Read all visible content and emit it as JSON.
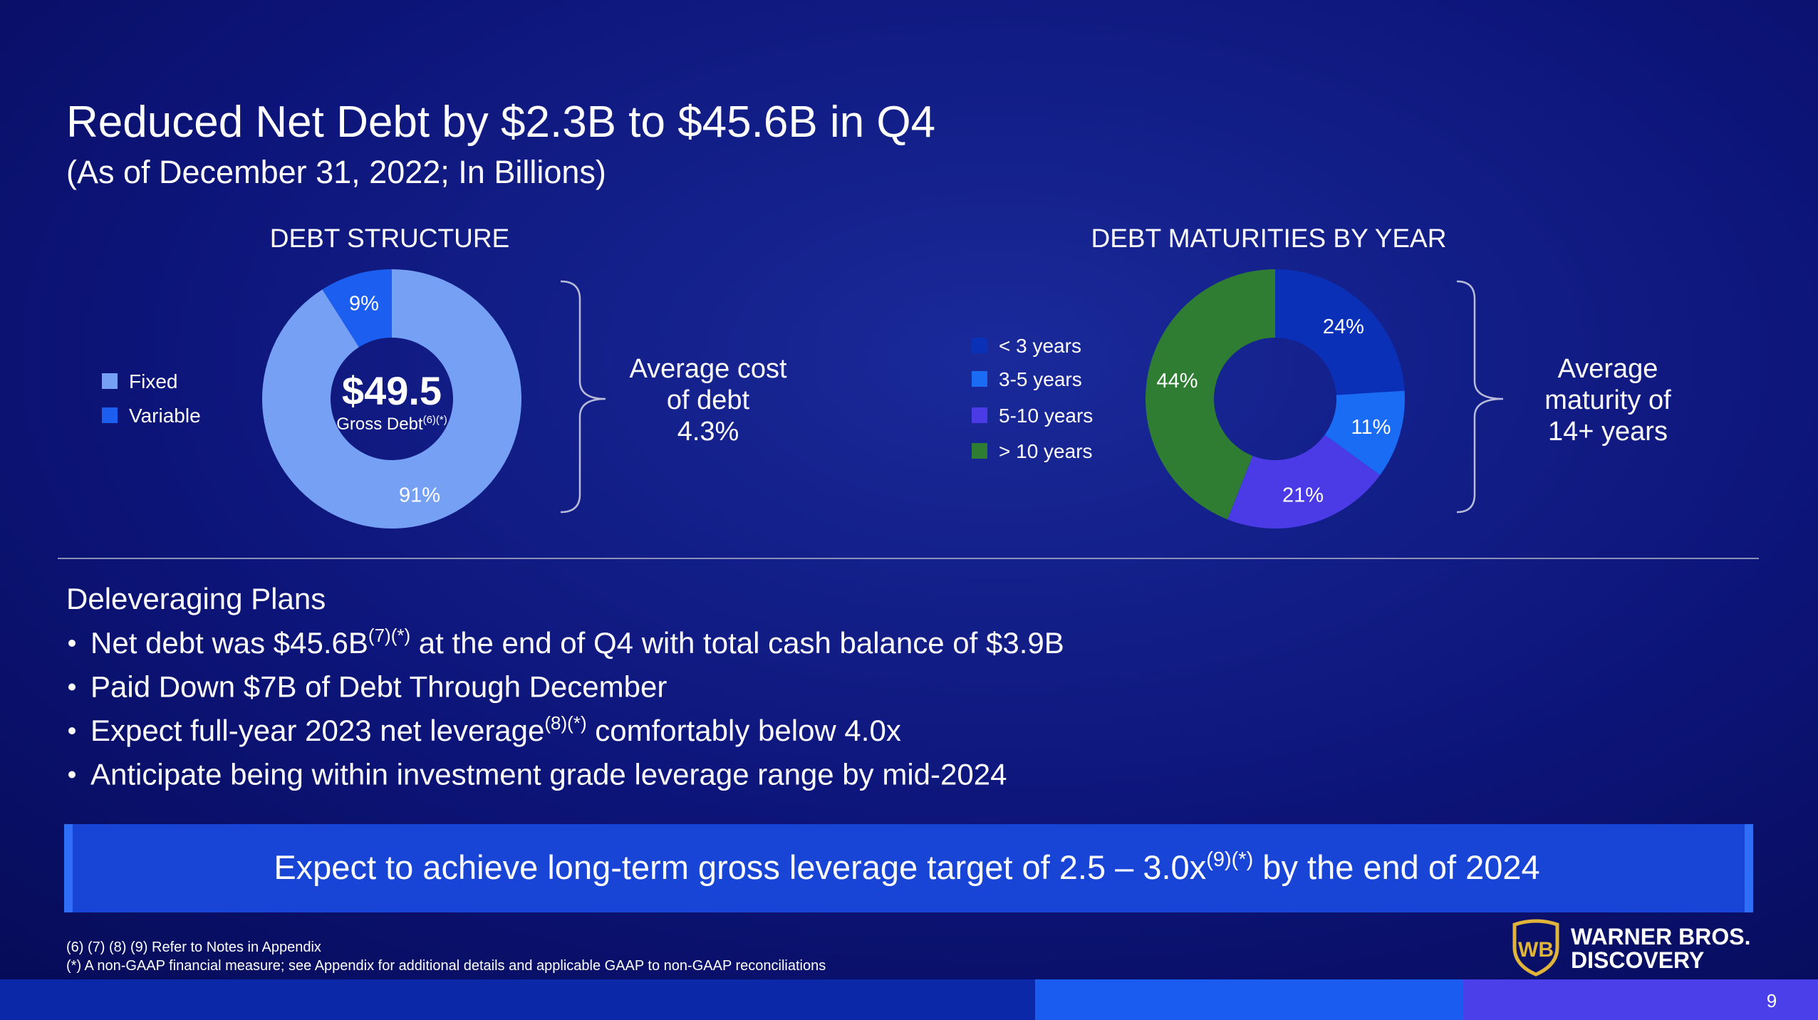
{
  "title": "Reduced Net Debt by $2.3B to $45.6B in Q4",
  "subtitle": "(As of December 31, 2022; In Billions)",
  "chart_data": [
    {
      "type": "donut",
      "title": "DEBT STRUCTURE",
      "categories": [
        "Fixed",
        "Variable"
      ],
      "values": [
        91,
        9
      ],
      "value_labels": [
        "91%",
        "9%"
      ],
      "colors": [
        "#76a0f4",
        "#1c5ff0"
      ],
      "center_value": "$49.5",
      "center_label": [
        "Gross Debt",
        "(6)(*)"
      ],
      "callout": [
        "Average cost",
        "of debt",
        "4.3%"
      ]
    },
    {
      "type": "donut",
      "title": "DEBT MATURITIES BY YEAR",
      "categories": [
        "< 3 years",
        "3-5 years",
        "5-10 years",
        "> 10 years"
      ],
      "values": [
        24,
        11,
        21,
        44
      ],
      "value_labels": [
        "24%",
        "11%",
        "21%",
        "44%"
      ],
      "colors": [
        "#0b30b8",
        "#1a6cf5",
        "#4a3be6",
        "#2e7d32"
      ],
      "callout": [
        "Average",
        "maturity of",
        "14+ years"
      ]
    }
  ],
  "plans": {
    "heading": "Deleveraging Plans",
    "bullets": [
      [
        "Net debt was $45.6B",
        "(7)(*)",
        " at the end of Q4 with total cash balance of $3.9B"
      ],
      [
        "Paid Down $7B of Debt Through December"
      ],
      [
        "Expect full-year 2023 net leverage",
        "(8)(*)",
        " comfortably below 4.0x"
      ],
      [
        "Anticipate being within investment grade leverage range by mid-2024"
      ]
    ]
  },
  "banner": [
    "Expect to achieve long-term gross leverage target of 2.5 – 3.0x",
    "(9)(*)",
    " by the end of 2024"
  ],
  "footnotes": [
    "(6) (7) (8) (9) Refer to Notes in Appendix",
    "(*) A non-GAAP financial measure; see Appendix for additional details and applicable GAAP to non-GAAP reconciliations"
  ],
  "logo": [
    "WARNER BROS.",
    "DISCOVERY"
  ],
  "page_number": "9"
}
